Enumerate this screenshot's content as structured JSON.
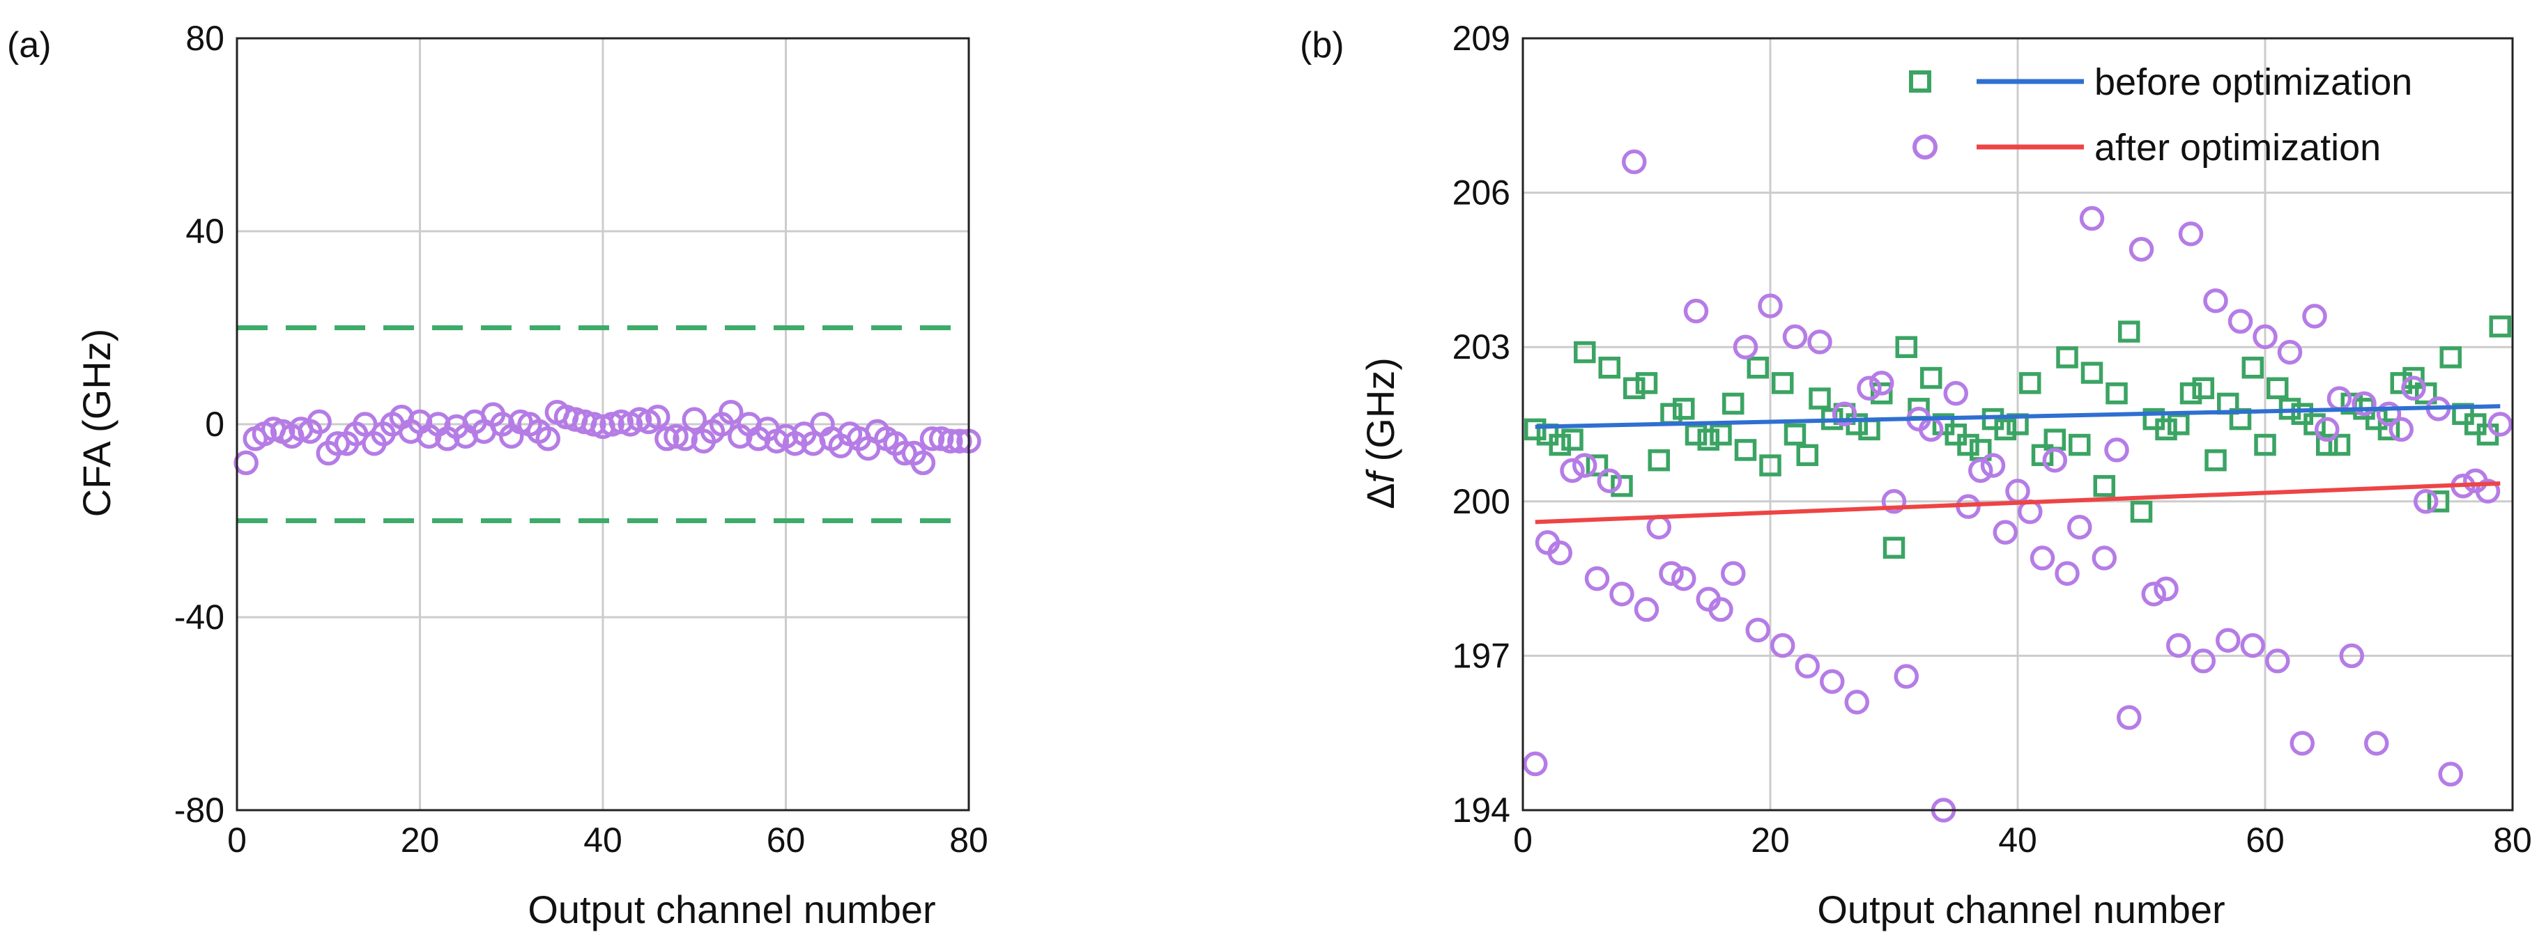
{
  "chart_data": [
    {
      "panel_label": "(a)",
      "type": "scatter",
      "xlabel": "Output channel number",
      "ylabel": "CFA (GHz)",
      "xlim": [
        0,
        80
      ],
      "ylim": [
        -80,
        80
      ],
      "xticks": [
        0,
        20,
        40,
        60,
        80
      ],
      "yticks": [
        -80,
        -40,
        0,
        40,
        80
      ],
      "xtick_labels": [
        "0",
        "20",
        "40",
        "60",
        "80"
      ],
      "ytick_labels": [
        "-80",
        "-40",
        "0",
        "40",
        "80"
      ],
      "grid": true,
      "reference_lines": [
        20,
        -20
      ],
      "colors": {
        "marker": "#b57ce6",
        "reference": "#3dab6a",
        "grid": "#cccccc"
      },
      "series": [
        {
          "name": "CFA",
          "marker": "circle",
          "x": [
            1,
            2,
            3,
            4,
            5,
            6,
            7,
            8,
            9,
            10,
            11,
            12,
            13,
            14,
            15,
            16,
            17,
            18,
            19,
            20,
            21,
            22,
            23,
            24,
            25,
            26,
            27,
            28,
            29,
            30,
            31,
            32,
            33,
            34,
            35,
            36,
            37,
            38,
            39,
            40,
            41,
            42,
            43,
            44,
            45,
            46,
            47,
            48,
            49,
            50,
            51,
            52,
            53,
            54,
            55,
            56,
            57,
            58,
            59,
            60,
            61,
            62,
            63,
            64,
            65,
            66,
            67,
            68,
            69,
            70,
            71,
            72,
            73,
            74,
            75,
            76,
            77,
            78,
            79,
            80
          ],
          "y": [
            -8,
            -3,
            -2,
            -1,
            -1.5,
            -2.5,
            -1,
            -1.5,
            0.5,
            -6,
            -4,
            -4,
            -2,
            0,
            -4,
            -2,
            0,
            1.5,
            -1.5,
            0.5,
            -2.5,
            0,
            -3,
            -0.5,
            -2.5,
            0.5,
            -1.5,
            2,
            0,
            -2.5,
            0.5,
            0,
            -1.5,
            -3,
            2.5,
            1.5,
            1,
            0.5,
            0,
            -0.5,
            0,
            0.5,
            0,
            1,
            0.5,
            1.5,
            -3,
            -2.5,
            -3,
            1,
            -3.5,
            -1.5,
            0,
            2.5,
            -2.5,
            0,
            -3,
            -1,
            -3.5,
            -2.5,
            -4,
            -2,
            -4,
            0,
            -3,
            -4.5,
            -2,
            -3,
            -5,
            -1.5,
            -3,
            -4,
            -6,
            -6,
            -8,
            -3,
            -3,
            -3.5,
            -3.5,
            -3.5
          ]
        }
      ]
    },
    {
      "panel_label": "(b)",
      "type": "scatter",
      "xlabel": "Output channel number",
      "ylabel": "Δf (GHz)",
      "xlim": [
        0,
        80
      ],
      "ylim": [
        194,
        209
      ],
      "xticks": [
        0,
        20,
        40,
        60,
        80
      ],
      "yticks": [
        194,
        197,
        200,
        203,
        206,
        209
      ],
      "xtick_labels": [
        "0",
        "20",
        "40",
        "60",
        "80"
      ],
      "ytick_labels": [
        "194",
        "197",
        "200",
        "203",
        "206",
        "209"
      ],
      "grid": true,
      "legend_position": "top-right",
      "colors": {
        "before": "#3ba463",
        "after": "#b57ce6",
        "line_before": "#2f6fd1",
        "line_after": "#ee4444",
        "grid": "#cccccc"
      },
      "series": [
        {
          "name": "before optimization",
          "marker": "square",
          "x": [
            1,
            2,
            3,
            4,
            5,
            6,
            7,
            8,
            9,
            10,
            11,
            12,
            13,
            14,
            15,
            16,
            17,
            18,
            19,
            20,
            21,
            22,
            23,
            24,
            25,
            26,
            27,
            28,
            29,
            30,
            31,
            32,
            33,
            34,
            35,
            36,
            37,
            38,
            39,
            40,
            41,
            42,
            43,
            44,
            45,
            46,
            47,
            48,
            49,
            50,
            51,
            52,
            53,
            54,
            55,
            56,
            57,
            58,
            59,
            60,
            61,
            62,
            63,
            64,
            65,
            66,
            67,
            68,
            69,
            70,
            71,
            72,
            73,
            74,
            75,
            76,
            77,
            78,
            79
          ],
          "y": [
            201.4,
            201.3,
            201.1,
            201.2,
            202.9,
            200.7,
            202.6,
            200.3,
            202.2,
            202.3,
            200.8,
            201.7,
            201.8,
            201.3,
            201.2,
            201.3,
            201.9,
            201.0,
            202.6,
            200.7,
            202.3,
            201.3,
            200.9,
            202.0,
            201.6,
            201.7,
            201.5,
            201.4,
            202.1,
            199.1,
            203.0,
            201.8,
            202.4,
            201.5,
            201.3,
            201.1,
            201.0,
            201.6,
            201.4,
            201.5,
            202.3,
            200.9,
            201.2,
            202.8,
            201.1,
            202.5,
            200.3,
            202.1,
            203.3,
            199.8,
            201.6,
            201.4,
            201.5,
            202.1,
            202.2,
            200.8,
            201.9,
            201.6,
            202.6,
            201.1,
            202.2,
            201.8,
            201.7,
            201.5,
            201.1,
            201.1,
            201.9,
            201.8,
            201.6,
            201.4,
            202.3,
            202.4,
            202.1,
            200.0,
            202.8,
            201.7,
            201.5,
            201.3,
            203.4
          ]
        },
        {
          "name": "after optimization",
          "marker": "circle",
          "x": [
            1,
            2,
            3,
            4,
            5,
            6,
            7,
            8,
            9,
            10,
            11,
            12,
            13,
            14,
            15,
            16,
            17,
            18,
            19,
            20,
            21,
            22,
            23,
            24,
            25,
            26,
            27,
            28,
            29,
            30,
            31,
            32,
            33,
            34,
            35,
            36,
            37,
            38,
            39,
            40,
            41,
            42,
            43,
            44,
            45,
            46,
            47,
            48,
            49,
            50,
            51,
            52,
            53,
            54,
            55,
            56,
            57,
            58,
            59,
            60,
            61,
            62,
            63,
            64,
            65,
            66,
            67,
            68,
            69,
            70,
            71,
            72,
            73,
            74,
            75,
            76,
            77,
            78,
            79
          ],
          "y": [
            194.9,
            199.2,
            199.0,
            200.6,
            200.7,
            198.5,
            200.4,
            198.2,
            206.6,
            197.9,
            199.5,
            198.6,
            198.5,
            203.7,
            198.1,
            197.9,
            198.6,
            203.0,
            197.5,
            203.8,
            197.2,
            203.2,
            196.8,
            203.1,
            196.5,
            201.7,
            196.1,
            202.2,
            202.3,
            200.0,
            196.6,
            201.6,
            201.4,
            194.0,
            202.1,
            199.9,
            200.6,
            200.7,
            199.4,
            200.2,
            199.8,
            198.9,
            200.8,
            198.6,
            199.5,
            205.5,
            198.9,
            201.0,
            195.8,
            204.9,
            198.2,
            198.3,
            197.2,
            205.2,
            196.9,
            203.9,
            197.3,
            203.5,
            197.2,
            203.2,
            196.9,
            202.9,
            195.3,
            203.6,
            201.4,
            202.0,
            197.0,
            201.9,
            195.3,
            201.7,
            201.4,
            202.2,
            200.0,
            201.8,
            194.7,
            200.3,
            200.4,
            200.2,
            201.5
          ]
        },
        {
          "name": "before optimization",
          "type": "line",
          "x": [
            1,
            79
          ],
          "y": [
            201.45,
            201.85
          ]
        },
        {
          "name": "after optimization",
          "type": "line",
          "x": [
            1,
            79
          ],
          "y": [
            199.6,
            200.35
          ]
        }
      ]
    }
  ]
}
